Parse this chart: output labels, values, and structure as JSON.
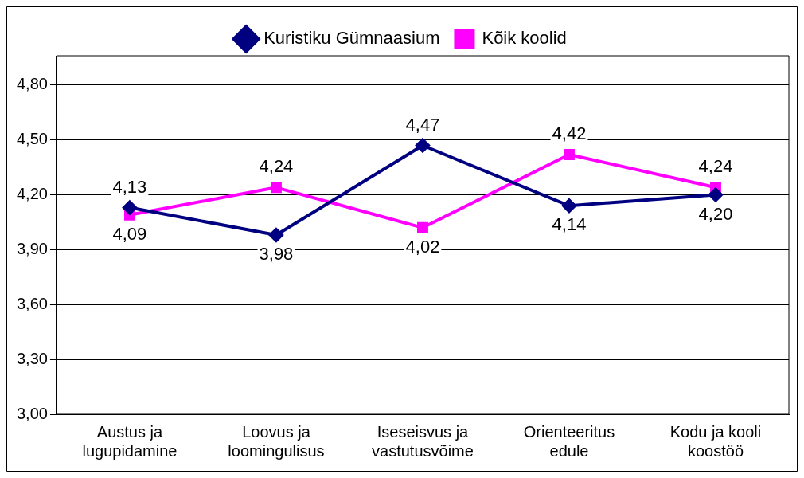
{
  "chart_data": {
    "type": "line",
    "categories": [
      "Austus ja lugupidamine",
      "Loovus ja loomingulisus",
      "Iseseisvus ja vastutusvõime",
      "Orienteeritus edule",
      "Kodu ja kooli koostöö"
    ],
    "series": [
      {
        "name": "Kuristiku Gümnaasium",
        "color": "#000080",
        "marker": "diamond",
        "values": [
          4.13,
          3.98,
          4.47,
          4.14,
          4.2
        ],
        "value_labels": [
          "4,13",
          "3,98",
          "4,47",
          "4,14",
          "4,20"
        ]
      },
      {
        "name": "Kõik koolid",
        "color": "#ff00ff",
        "marker": "square",
        "values": [
          4.09,
          4.24,
          4.02,
          4.42,
          4.24
        ],
        "value_labels": [
          "4,09",
          "4,24",
          "4,02",
          "4,42",
          "4,24"
        ]
      }
    ],
    "ylim": [
      3.0,
      4.96
    ],
    "yticks": [
      {
        "value": 3.0,
        "label": "3,00"
      },
      {
        "value": 3.3,
        "label": "3,30"
      },
      {
        "value": 3.6,
        "label": "3,60"
      },
      {
        "value": 3.9,
        "label": "3,90"
      },
      {
        "value": 4.2,
        "label": "4,20"
      },
      {
        "value": 4.5,
        "label": "4,50"
      },
      {
        "value": 4.8,
        "label": "4,80"
      }
    ],
    "grid": "y",
    "legend": "top",
    "line_style": "solid"
  }
}
